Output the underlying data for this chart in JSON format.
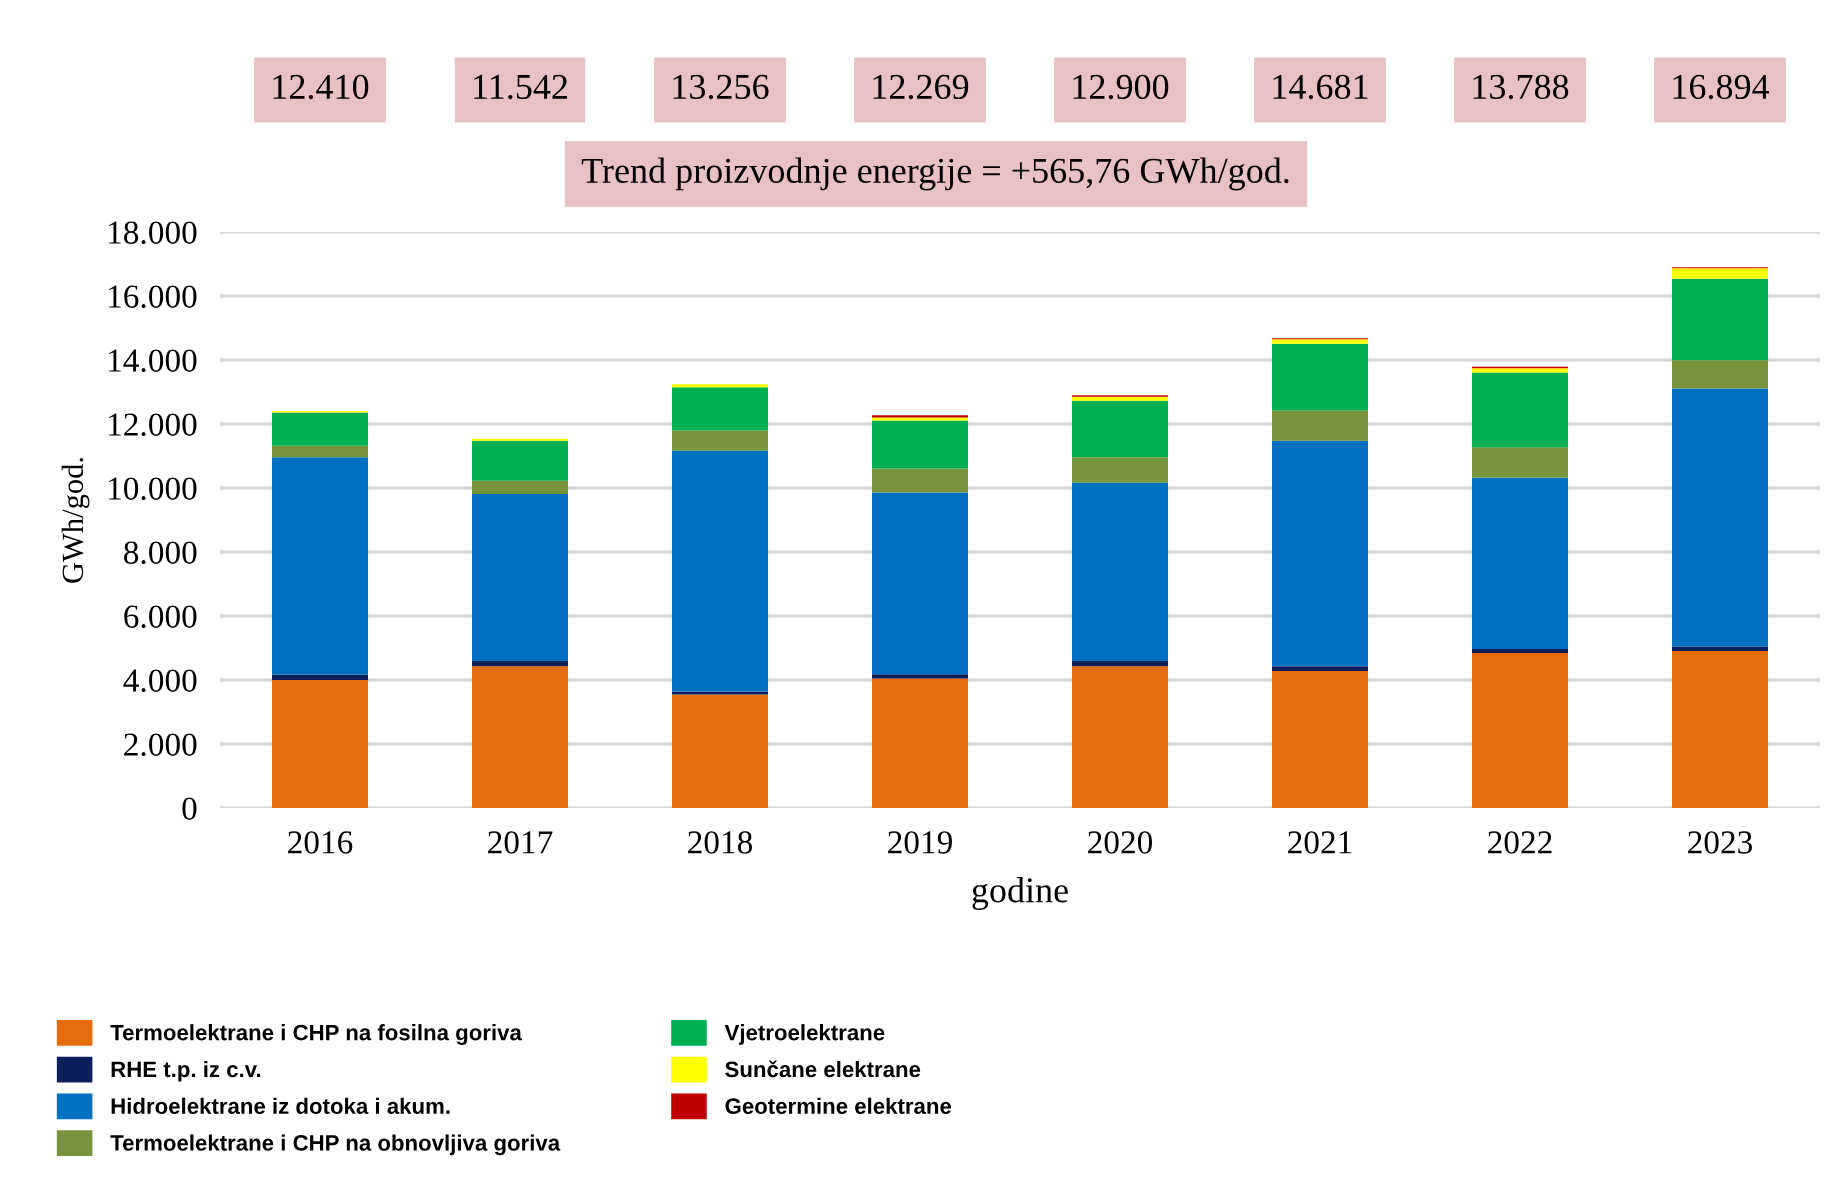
{
  "chart_data": {
    "type": "bar",
    "stacked": true,
    "xlabel": "godine",
    "ylabel": "GWh/god.",
    "categories": [
      "2016",
      "2017",
      "2018",
      "2019",
      "2020",
      "2021",
      "2022",
      "2023"
    ],
    "series": [
      {
        "name": "Termoelektrane i CHP na fosilna goriva",
        "color": "#e46c0a",
        "values": [
          4000,
          4430,
          3550,
          4050,
          4430,
          4280,
          4840,
          4910
        ]
      },
      {
        "name": "RHE t.p. iz c.v.",
        "color": "#0b1f5c",
        "values": [
          170,
          160,
          80,
          130,
          160,
          150,
          130,
          140
        ]
      },
      {
        "name": "Hidroelektrane iz dotoka i akum.",
        "color": "#0070c0",
        "values": [
          6790,
          5220,
          7540,
          5680,
          5580,
          7050,
          5360,
          8060
        ]
      },
      {
        "name": "Termoelektrane i CHP na obnovljiva goriva",
        "color": "#77933c",
        "values": [
          360,
          420,
          630,
          750,
          790,
          940,
          940,
          880
        ]
      },
      {
        "name": "Vjetroelektrane",
        "color": "#00b050",
        "values": [
          1040,
          1250,
          1350,
          1500,
          1770,
          2090,
          2340,
          2550
        ]
      },
      {
        "name": "Sunčane elektrane",
        "color": "#ffff00",
        "values": [
          50,
          60,
          90,
          90,
          120,
          140,
          130,
          330
        ]
      },
      {
        "name": "Geotermine elektrane",
        "color": "#c00000",
        "values": [
          0,
          0,
          null,
          70,
          50,
          30,
          50,
          30
        ]
      }
    ],
    "annotations": [
      "12.410",
      "11.542",
      "13.256",
      "12.269",
      "12.900",
      "14.681",
      "13.788",
      "16.894",
      "Trend proizvodnje energije = +565,76 GWh/god."
    ],
    "ylim": [
      0,
      18000
    ],
    "yticks": [
      0,
      {
        "value": 2000,
        "label": "2.000"
      },
      {
        "value": 4000,
        "label": "4.000"
      },
      {
        "value": 6000,
        "label": "6.000"
      },
      {
        "value": 8000,
        "label": "8.000"
      },
      {
        "value": 10000,
        "label": "10.000"
      },
      {
        "value": 12000,
        "label": "12.000"
      },
      {
        "value": 14000,
        "label": "14.000"
      },
      {
        "value": 16000,
        "label": "16.000"
      },
      {
        "value": 18000,
        "label": "18.000"
      }
    ],
    "grid": "y",
    "legend": "bottom"
  }
}
